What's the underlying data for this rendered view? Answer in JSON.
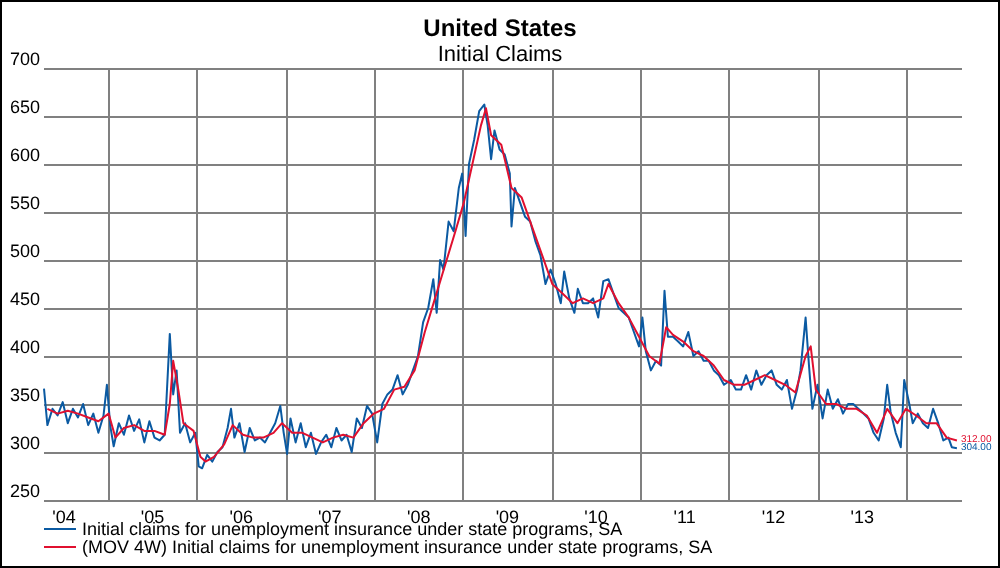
{
  "chart_data": {
    "type": "line",
    "title": "United States",
    "subtitle": "Initial Claims",
    "xlim": [
      "2004-04-10",
      "2014-08-16"
    ],
    "ylim": [
      250,
      700
    ],
    "yticks": [
      250,
      300,
      350,
      400,
      450,
      500,
      550,
      600,
      650,
      700
    ],
    "xticks": [
      {
        "value": "2004-07-01",
        "label": "'04"
      },
      {
        "value": "2005-01-01",
        "label": null
      },
      {
        "value": "2005-07-01",
        "label": "'05"
      },
      {
        "value": "2006-01-01",
        "label": null
      },
      {
        "value": "2006-07-01",
        "label": "'06"
      },
      {
        "value": "2007-01-01",
        "label": null
      },
      {
        "value": "2007-07-01",
        "label": "'07"
      },
      {
        "value": "2008-01-01",
        "label": null
      },
      {
        "value": "2008-07-01",
        "label": "'08"
      },
      {
        "value": "2009-01-01",
        "label": null
      },
      {
        "value": "2009-07-01",
        "label": "'09"
      },
      {
        "value": "2010-01-01",
        "label": null
      },
      {
        "value": "2010-07-01",
        "label": "'10"
      },
      {
        "value": "2011-01-01",
        "label": null
      },
      {
        "value": "2011-07-01",
        "label": "'11"
      },
      {
        "value": "2012-01-01",
        "label": null
      },
      {
        "value": "2012-07-01",
        "label": "'12"
      },
      {
        "value": "2013-01-01",
        "label": null
      },
      {
        "value": "2013-07-01",
        "label": "'13"
      },
      {
        "value": "2014-01-01",
        "label": null
      }
    ],
    "grid": true,
    "legend": "bottom left",
    "marker": "none",
    "line_style": "solid",
    "series": [
      {
        "name": "Initial claims for unemployment insurance under state programs, SA",
        "color": "#0b5aa2",
        "x": [
          "2004-04-10",
          "2004-04-24",
          "2004-05-15",
          "2004-06-05",
          "2004-06-26",
          "2004-07-17",
          "2004-08-07",
          "2004-08-28",
          "2004-09-18",
          "2004-10-09",
          "2004-10-30",
          "2004-11-20",
          "2004-12-11",
          "2004-12-25",
          "2005-01-08",
          "2005-01-22",
          "2005-02-12",
          "2005-03-05",
          "2005-03-26",
          "2005-04-16",
          "2005-05-07",
          "2005-05-28",
          "2005-06-18",
          "2005-07-09",
          "2005-07-30",
          "2005-08-20",
          "2005-09-10",
          "2005-09-24",
          "2005-10-08",
          "2005-10-22",
          "2005-11-12",
          "2005-12-03",
          "2005-12-24",
          "2006-01-07",
          "2006-01-21",
          "2006-02-11",
          "2006-03-04",
          "2006-03-25",
          "2006-04-15",
          "2006-05-06",
          "2006-05-20",
          "2006-06-03",
          "2006-06-24",
          "2006-07-15",
          "2006-08-05",
          "2006-08-26",
          "2006-09-16",
          "2006-10-07",
          "2006-10-28",
          "2006-11-18",
          "2006-12-09",
          "2006-12-23",
          "2007-01-06",
          "2007-01-20",
          "2007-02-10",
          "2007-03-03",
          "2007-03-24",
          "2007-04-14",
          "2007-05-05",
          "2007-05-26",
          "2007-06-16",
          "2007-07-07",
          "2007-07-28",
          "2007-08-18",
          "2007-09-08",
          "2007-09-29",
          "2007-10-20",
          "2007-11-10",
          "2007-12-01",
          "2007-12-22",
          "2008-01-12",
          "2008-02-02",
          "2008-02-23",
          "2008-03-15",
          "2008-04-05",
          "2008-04-26",
          "2008-05-17",
          "2008-06-07",
          "2008-06-28",
          "2008-07-19",
          "2008-08-09",
          "2008-08-30",
          "2008-09-13",
          "2008-09-27",
          "2008-10-11",
          "2008-11-01",
          "2008-11-22",
          "2008-12-13",
          "2008-12-27",
          "2009-01-10",
          "2009-01-24",
          "2009-02-14",
          "2009-03-07",
          "2009-03-28",
          "2009-04-11",
          "2009-04-25",
          "2009-05-09",
          "2009-05-30",
          "2009-06-20",
          "2009-07-11",
          "2009-07-18",
          "2009-08-01",
          "2009-08-22",
          "2009-09-12",
          "2009-10-03",
          "2009-10-24",
          "2009-11-14",
          "2009-12-05",
          "2009-12-26",
          "2010-01-16",
          "2010-02-06",
          "2010-02-20",
          "2010-03-13",
          "2010-04-03",
          "2010-04-17",
          "2010-05-08",
          "2010-05-29",
          "2010-06-19",
          "2010-07-10",
          "2010-07-31",
          "2010-08-21",
          "2010-09-11",
          "2010-10-02",
          "2010-10-23",
          "2010-11-13",
          "2010-12-04",
          "2010-12-25",
          "2011-01-08",
          "2011-01-22",
          "2011-02-12",
          "2011-03-05",
          "2011-03-26",
          "2011-04-09",
          "2011-04-23",
          "2011-05-14",
          "2011-06-04",
          "2011-06-25",
          "2011-07-16",
          "2011-08-06",
          "2011-08-27",
          "2011-09-17",
          "2011-10-08",
          "2011-10-29",
          "2011-11-19",
          "2011-12-10",
          "2012-01-07",
          "2012-01-28",
          "2012-02-18",
          "2012-03-10",
          "2012-03-31",
          "2012-04-21",
          "2012-05-12",
          "2012-06-02",
          "2012-06-23",
          "2012-07-14",
          "2012-08-04",
          "2012-08-25",
          "2012-09-15",
          "2012-10-06",
          "2012-10-20",
          "2012-11-10",
          "2012-11-24",
          "2012-12-08",
          "2012-12-29",
          "2013-01-19",
          "2013-02-09",
          "2013-03-02",
          "2013-03-23",
          "2013-04-13",
          "2013-05-04",
          "2013-05-25",
          "2013-06-15",
          "2013-07-06",
          "2013-07-27",
          "2013-08-17",
          "2013-09-07",
          "2013-09-28",
          "2013-10-12",
          "2013-10-26",
          "2013-11-16",
          "2013-12-07",
          "2013-12-21",
          "2014-01-11",
          "2014-01-25",
          "2014-02-15",
          "2014-03-08",
          "2014-03-29",
          "2014-04-19",
          "2014-05-10",
          "2014-05-31",
          "2014-06-21",
          "2014-07-05",
          "2014-07-26"
        ],
        "values": [
          366,
          328,
          345,
          338,
          352,
          330,
          345,
          336,
          350,
          328,
          340,
          320,
          338,
          370,
          327,
          306,
          330,
          318,
          338,
          322,
          334,
          310,
          332,
          315,
          312,
          318,
          423,
          360,
          385,
          320,
          330,
          310,
          320,
          285,
          283,
          297,
          290,
          300,
          305,
          325,
          345,
          315,
          330,
          300,
          325,
          312,
          315,
          310,
          320,
          330,
          348,
          320,
          298,
          335,
          310,
          330,
          305,
          320,
          298,
          310,
          318,
          305,
          325,
          312,
          318,
          300,
          335,
          325,
          348,
          340,
          310,
          350,
          360,
          365,
          380,
          360,
          370,
          385,
          400,
          435,
          450,
          480,
          445,
          500,
          490,
          540,
          530,
          575,
          590,
          525,
          600,
          625,
          655,
          662,
          640,
          605,
          635,
          615,
          610,
          590,
          535,
          575,
          560,
          545,
          540,
          520,
          505,
          475,
          490,
          475,
          455,
          488,
          460,
          445,
          470,
          455,
          455,
          460,
          440,
          478,
          480,
          465,
          450,
          445,
          440,
          425,
          410,
          440,
          405,
          385,
          395,
          390,
          468,
          420,
          420,
          415,
          410,
          425,
          400,
          405,
          395,
          395,
          385,
          380,
          370,
          375,
          365,
          365,
          380,
          365,
          385,
          370,
          380,
          385,
          370,
          365,
          375,
          345,
          365,
          385,
          440,
          390,
          345,
          370,
          335,
          365,
          345,
          355,
          340,
          350,
          350,
          345,
          340,
          335,
          320,
          312,
          335,
          370,
          342,
          320,
          305,
          375,
          350,
          330,
          340,
          330,
          325,
          345,
          330,
          312,
          315,
          305,
          304
        ]
      },
      {
        "name": "(MOV 4W) Initial claims for unemployment insurance under state programs, SA",
        "color": "#e0102f",
        "x": [
          "2004-04-24",
          "2004-06-05",
          "2004-07-17",
          "2004-08-28",
          "2004-10-09",
          "2004-11-20",
          "2005-01-01",
          "2005-01-29",
          "2005-03-05",
          "2005-04-16",
          "2005-05-28",
          "2005-07-09",
          "2005-08-20",
          "2005-09-10",
          "2005-09-24",
          "2005-10-15",
          "2005-11-05",
          "2005-12-17",
          "2006-01-14",
          "2006-02-04",
          "2006-03-11",
          "2006-04-22",
          "2006-05-27",
          "2006-07-08",
          "2006-08-19",
          "2006-09-30",
          "2006-11-11",
          "2006-12-16",
          "2007-01-27",
          "2007-03-10",
          "2007-04-21",
          "2007-06-02",
          "2007-07-14",
          "2007-08-25",
          "2007-10-06",
          "2007-11-17",
          "2007-12-29",
          "2008-02-09",
          "2008-03-22",
          "2008-05-03",
          "2008-06-14",
          "2008-07-26",
          "2008-09-06",
          "2008-10-18",
          "2008-11-29",
          "2009-01-03",
          "2009-02-07",
          "2009-03-14",
          "2009-04-04",
          "2009-04-25",
          "2009-06-06",
          "2009-07-18",
          "2009-08-29",
          "2009-10-10",
          "2009-11-21",
          "2010-01-02",
          "2010-02-13",
          "2010-03-27",
          "2010-05-08",
          "2010-06-19",
          "2010-07-31",
          "2010-08-21",
          "2010-10-02",
          "2010-11-13",
          "2010-12-25",
          "2011-02-05",
          "2011-03-19",
          "2011-04-16",
          "2011-05-14",
          "2011-06-25",
          "2011-08-06",
          "2011-09-17",
          "2011-10-29",
          "2011-12-10",
          "2012-01-21",
          "2012-03-03",
          "2012-04-14",
          "2012-05-26",
          "2012-07-07",
          "2012-08-18",
          "2012-09-29",
          "2012-11-10",
          "2012-12-01",
          "2012-12-22",
          "2013-02-02",
          "2013-03-16",
          "2013-04-27",
          "2013-06-08",
          "2013-07-20",
          "2013-08-31",
          "2013-10-12",
          "2013-11-23",
          "2013-12-28",
          "2014-02-08",
          "2014-03-22",
          "2014-05-03",
          "2014-06-14",
          "2014-07-26"
        ],
        "values": [
          345,
          340,
          343,
          340,
          336,
          332,
          340,
          315,
          325,
          328,
          322,
          322,
          318,
          350,
          395,
          365,
          330,
          322,
          295,
          290,
          295,
          308,
          328,
          318,
          315,
          315,
          320,
          330,
          320,
          320,
          315,
          310,
          315,
          318,
          315,
          330,
          340,
          345,
          365,
          368,
          385,
          425,
          460,
          495,
          530,
          560,
          600,
          640,
          658,
          630,
          620,
          575,
          565,
          535,
          505,
          475,
          465,
          455,
          460,
          455,
          460,
          475,
          455,
          440,
          420,
          400,
          392,
          430,
          422,
          415,
          405,
          400,
          390,
          375,
          370,
          370,
          375,
          380,
          375,
          370,
          362,
          400,
          410,
          365,
          350,
          350,
          345,
          345,
          338,
          320,
          345,
          330,
          345,
          338,
          330,
          330,
          315,
          312
        ]
      }
    ],
    "annotations": [
      {
        "text": "304.00",
        "x": "2014-07-26",
        "y": 304
      },
      {
        "text": "312.00",
        "x": "2014-07-26",
        "y": 312
      }
    ]
  }
}
